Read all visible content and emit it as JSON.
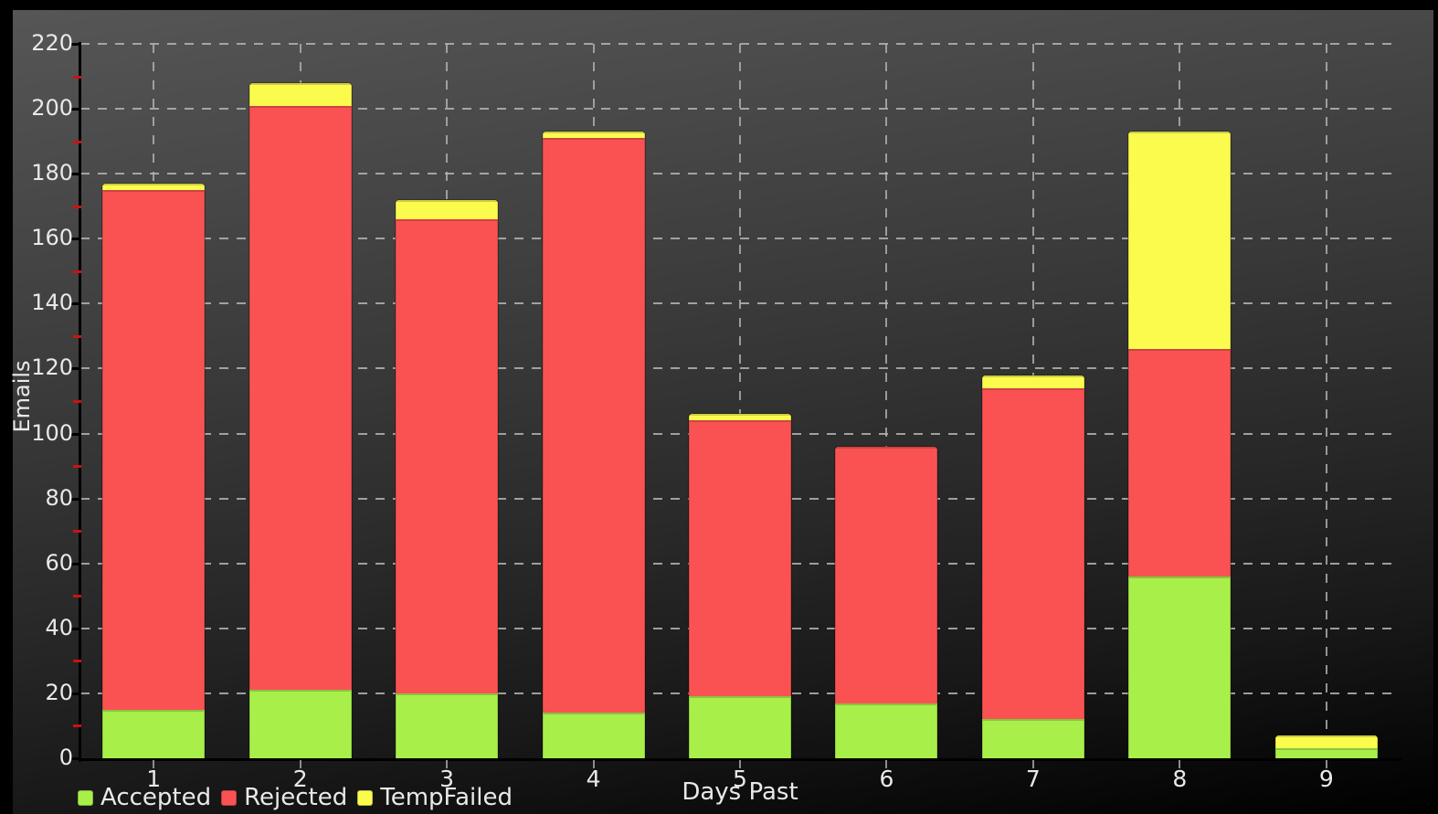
{
  "chart_data": {
    "type": "bar",
    "stacked": true,
    "title": "",
    "xlabel": "Days Past",
    "ylabel": "Emails",
    "categories": [
      "1",
      "2",
      "3",
      "4",
      "5",
      "6",
      "7",
      "8",
      "9"
    ],
    "series": [
      {
        "name": "Accepted",
        "color": "#a8ef4a",
        "values": [
          15,
          21,
          20,
          14,
          19,
          17,
          12,
          56,
          3
        ]
      },
      {
        "name": "Rejected",
        "color": "#fa5252",
        "values": [
          160,
          180,
          146,
          177,
          85,
          79,
          102,
          70,
          0
        ]
      },
      {
        "name": "TempFailed",
        "color": "#fbfb4e",
        "values": [
          2,
          7,
          6,
          2,
          2,
          0,
          4,
          67,
          4
        ]
      }
    ],
    "bar_totals": [
      177,
      208,
      172,
      193,
      106,
      96,
      118,
      193,
      7
    ],
    "ylim": [
      0,
      220
    ],
    "ytick_step": 20,
    "yticks": [
      0,
      20,
      40,
      60,
      80,
      100,
      120,
      140,
      160,
      180,
      200,
      220
    ],
    "minor_ticks": [
      10,
      30,
      50,
      70,
      90,
      110,
      130,
      150,
      170,
      190,
      210
    ],
    "grid": true,
    "legend_position": "bottom-left",
    "colors": {
      "background_top": "#565656",
      "background_bottom": "#000000",
      "gridline": "#b4b4b4",
      "axis_spine": "#000000",
      "minor_tick": "#cc1111",
      "text": "#e9e9e9"
    }
  }
}
